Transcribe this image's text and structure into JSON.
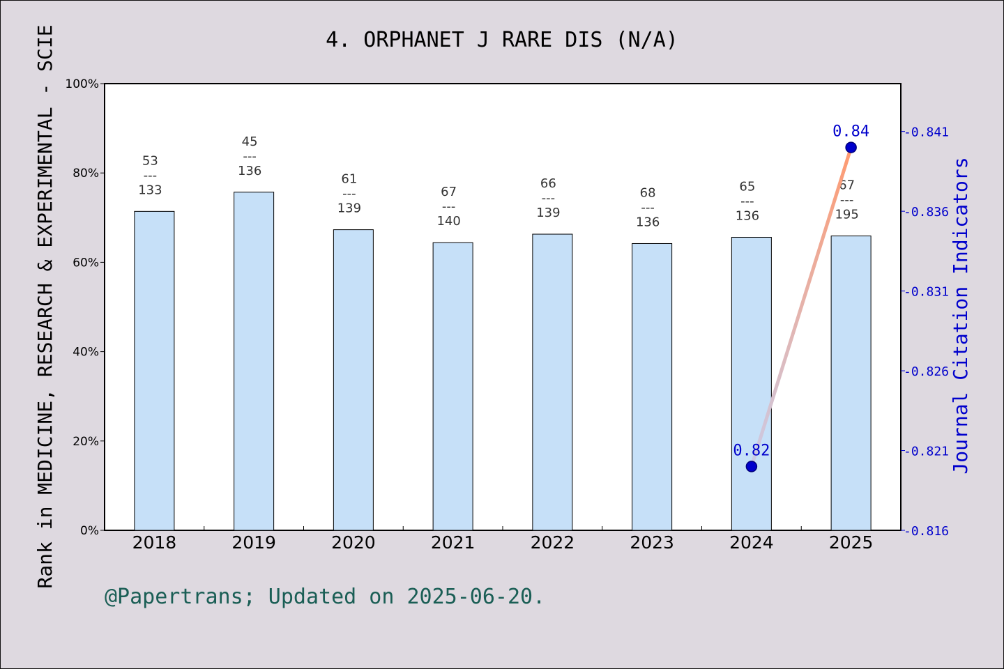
{
  "chart_data": {
    "type": "bar",
    "title": "4. ORPHANET J RARE DIS (N/A)",
    "ylabel_left": "Rank in MEDICINE, RESEARCH & EXPERIMENTAL - SCIE",
    "ylabel_right": "Journal Citation Indicators",
    "categories": [
      "2018",
      "2019",
      "2020",
      "2021",
      "2022",
      "2023",
      "2024",
      "2025"
    ],
    "bars": {
      "values_pct": [
        71.4,
        75.7,
        67.3,
        64.4,
        66.3,
        64.2,
        65.6,
        65.9
      ],
      "rank": [
        "53",
        "45",
        "61",
        "67",
        "66",
        "68",
        "65",
        "67"
      ],
      "total": [
        "133",
        "136",
        "139",
        "140",
        "139",
        "136",
        "136",
        "195"
      ],
      "separator": "---"
    },
    "ylim_left": [
      0,
      100
    ],
    "yticks_left": [
      "0%",
      "20%",
      "40%",
      "60%",
      "80%",
      "100%"
    ],
    "ylim_right": [
      0.816,
      0.844
    ],
    "yticks_right": [
      "0.816",
      "0.821",
      "0.826",
      "0.831",
      "0.836",
      "0.841"
    ],
    "line": {
      "points": [
        {
          "x": "2024",
          "y": 0.82,
          "label": "0.82"
        },
        {
          "x": "2025",
          "y": 0.84,
          "label": "0.84"
        }
      ],
      "color_start": "#cbcbe6",
      "color_end": "#ff9a70",
      "marker_color": "#0000cc"
    },
    "bar_color": "#c6e0f8",
    "background": "#ded9e0",
    "footer": "@Papertrans; Updated on 2025-06-20."
  }
}
